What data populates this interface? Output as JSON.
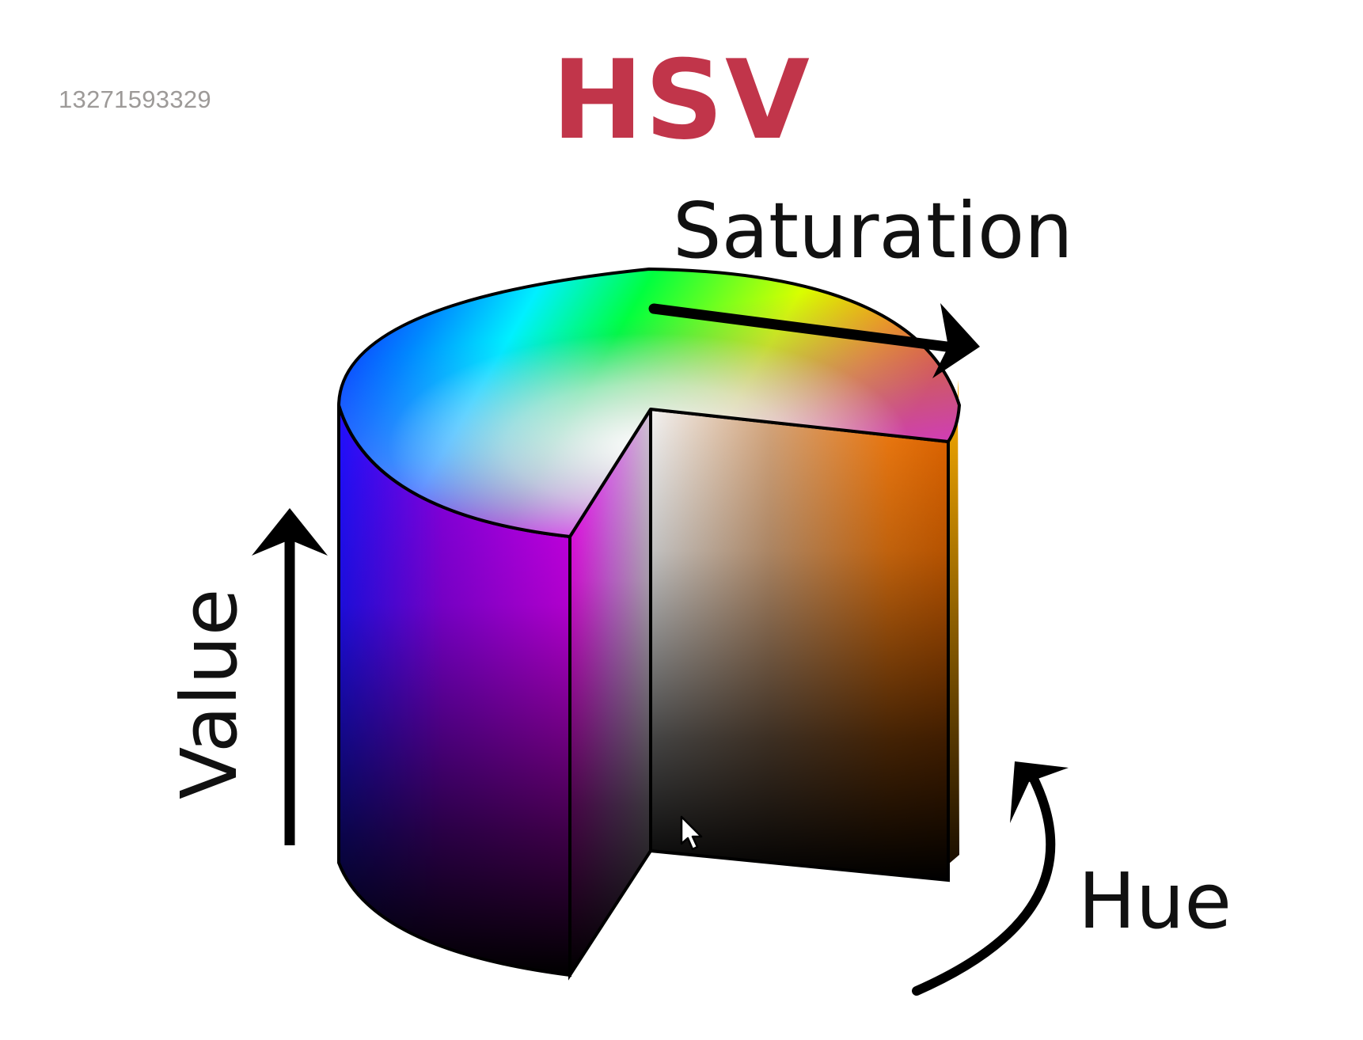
{
  "overlay": {
    "id_watermark": "13271593329"
  },
  "diagram": {
    "title": "HSV",
    "labels": {
      "saturation": "Saturation",
      "value": "Value",
      "hue": "Hue"
    },
    "icons": [
      "saturation-arrow-icon",
      "value-arrow-icon",
      "hue-arrow-icon",
      "mouse-pointer-icon"
    ],
    "colors": {
      "title": "#c1354a",
      "outline": "#000000",
      "id_watermark": "#9d9a98"
    }
  }
}
